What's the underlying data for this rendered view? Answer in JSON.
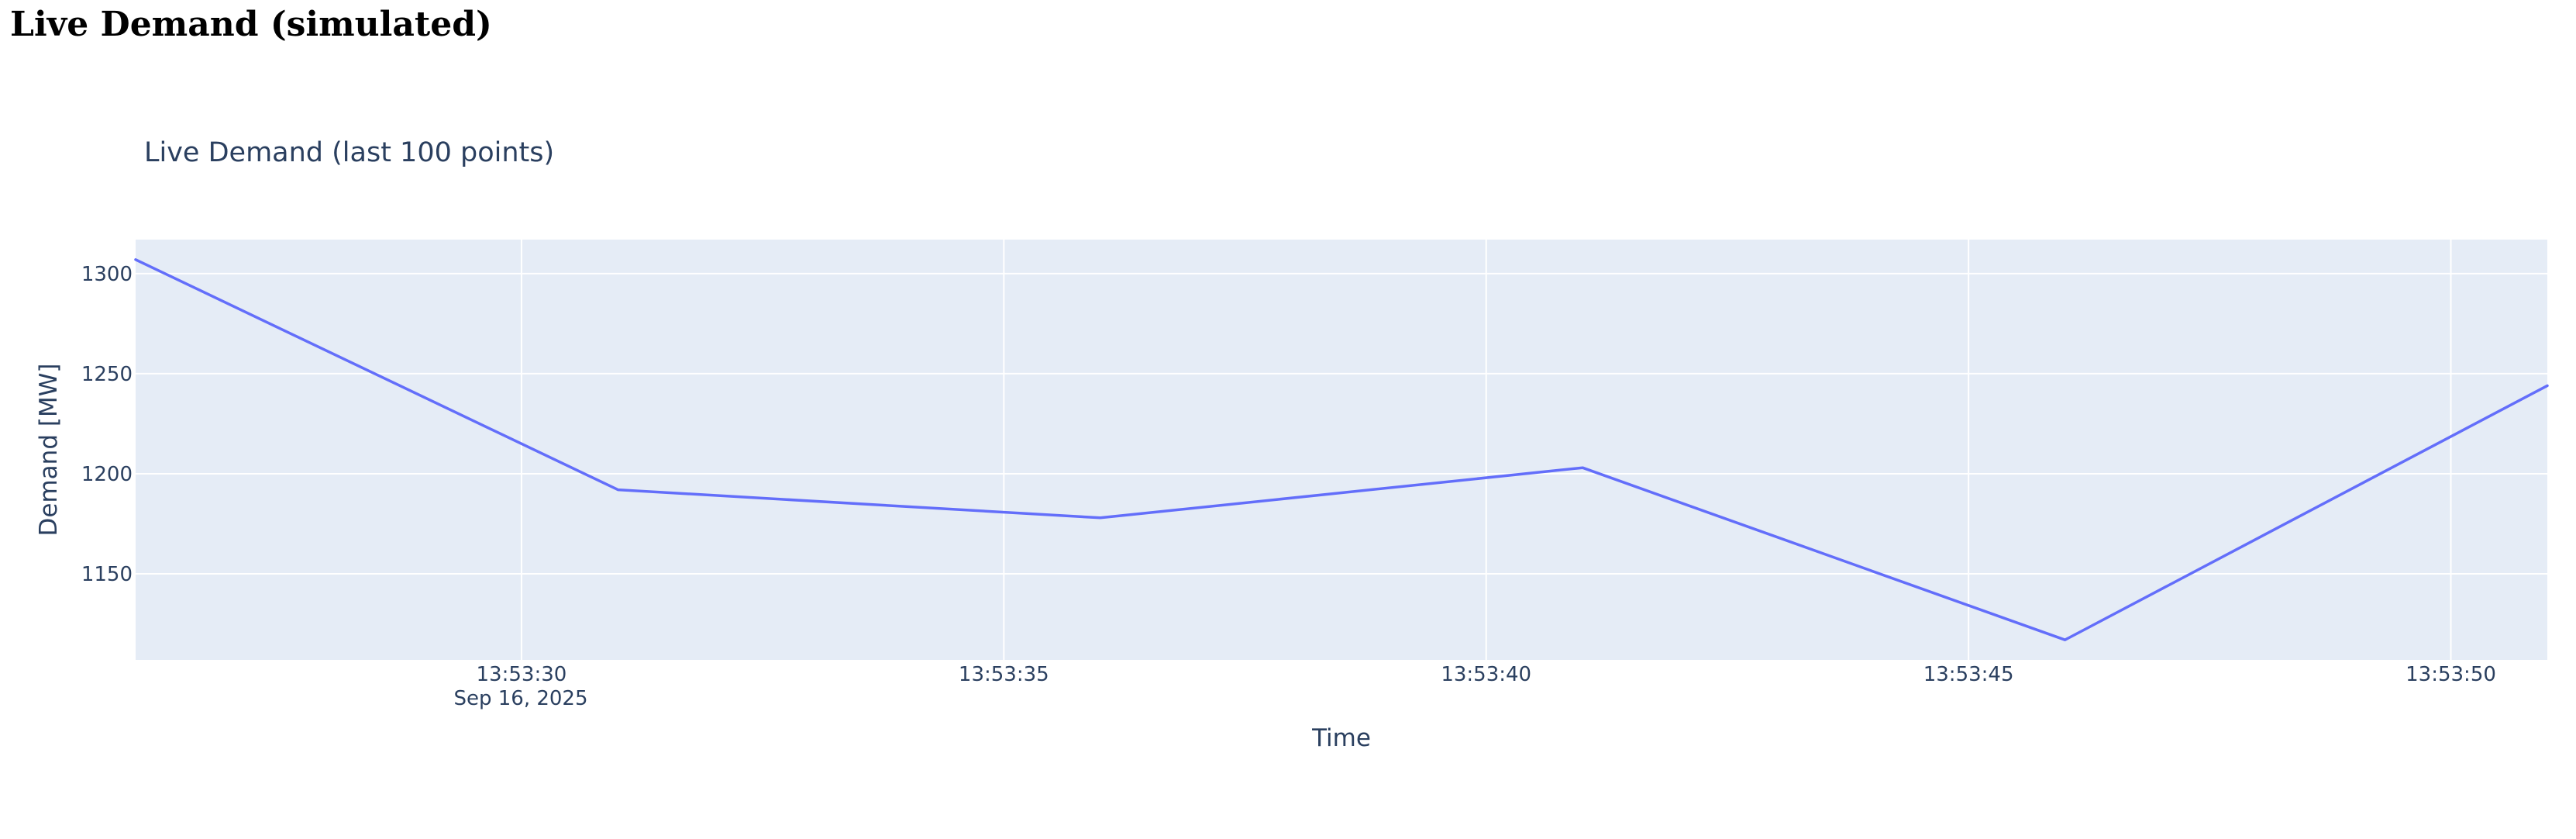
{
  "page": {
    "heading": "Live Demand (simulated)"
  },
  "chart_data": {
    "type": "line",
    "title": "Live Demand (last 100 points)",
    "xlabel": "Time",
    "ylabel": "Demand [MW]",
    "x_date_label": "Sep 16, 2025",
    "x_tick_labels": [
      "13:53:30",
      "13:53:35",
      "13:53:40",
      "13:53:45",
      "13:53:50"
    ],
    "x_tick_seconds": [
      30,
      35,
      40,
      45,
      50
    ],
    "y_ticks": [
      1150,
      1200,
      1250,
      1300
    ],
    "xlim": [
      "13:53:26",
      "13:53:51"
    ],
    "ylim": [
      1107,
      1317
    ],
    "grid": true,
    "line_color": "#636efa",
    "plot_bg": "#e5ecf6",
    "grid_color": "#ffffff",
    "text_color": "#2a3f5f",
    "series": [
      {
        "x": [
          "13:53:26",
          "13:53:31",
          "13:53:36",
          "13:53:41",
          "13:53:46",
          "13:53:51"
        ],
        "values": [
          1307,
          1192,
          1178,
          1203,
          1117,
          1244
        ]
      }
    ]
  }
}
